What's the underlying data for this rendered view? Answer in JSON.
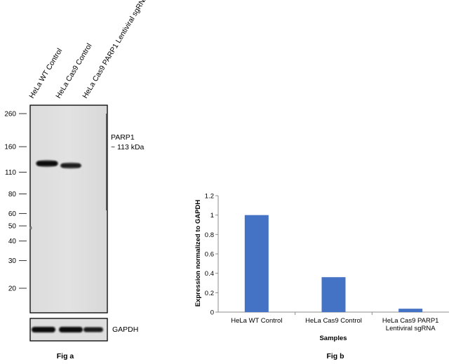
{
  "fig_a": {
    "caption": "Fig a",
    "lane_labels": [
      "HeLa WT Control",
      "HeLa Cas9 Control",
      "HeLa Cas9 PARP1 Lentiviral sgRNA"
    ],
    "markers": [
      {
        "label": "260",
        "kda": 260
      },
      {
        "label": "160",
        "kda": 160
      },
      {
        "label": "110",
        "kda": 110
      },
      {
        "label": "80",
        "kda": 80
      },
      {
        "label": "60",
        "kda": 60
      },
      {
        "label": "50",
        "kda": 50
      },
      {
        "label": "40",
        "kda": 40
      },
      {
        "label": "30",
        "kda": 30
      },
      {
        "label": "20",
        "kda": 20
      }
    ],
    "band_label_line1": "PARP1",
    "band_label_line2": "~ 113 kDa",
    "loading_control_label": "GAPDH",
    "parp1_band_relative_intensity": [
      1.0,
      0.7,
      0
    ],
    "gapdh_band_relative_intensity": [
      1.0,
      1.0,
      0.85
    ]
  },
  "chart_data": {
    "type": "bar",
    "caption": "Fig b",
    "categories": [
      "HeLa WT Control",
      "HeLa Cas9 Control",
      "HeLa Cas9 PARP1 Lentiviral sgRNA"
    ],
    "category_lines": [
      [
        "HeLa WT Control"
      ],
      [
        "HeLa Cas9 Control"
      ],
      [
        "HeLa Cas9 PARP1",
        "Lentiviral sgRNA"
      ]
    ],
    "values": [
      1.0,
      0.36,
      0.035
    ],
    "xlabel": "Samples",
    "ylabel": "Expression normalized to GAPDH",
    "ylim": [
      0,
      1.2
    ],
    "yticks": [
      0,
      0.2,
      0.4,
      0.6,
      0.8,
      1,
      1.2
    ],
    "ytick_labels": [
      "0",
      "0.2",
      "0.4",
      "0.6",
      "0.8",
      "1",
      "1.2"
    ],
    "bar_color": "#4472c4",
    "grid": false
  }
}
